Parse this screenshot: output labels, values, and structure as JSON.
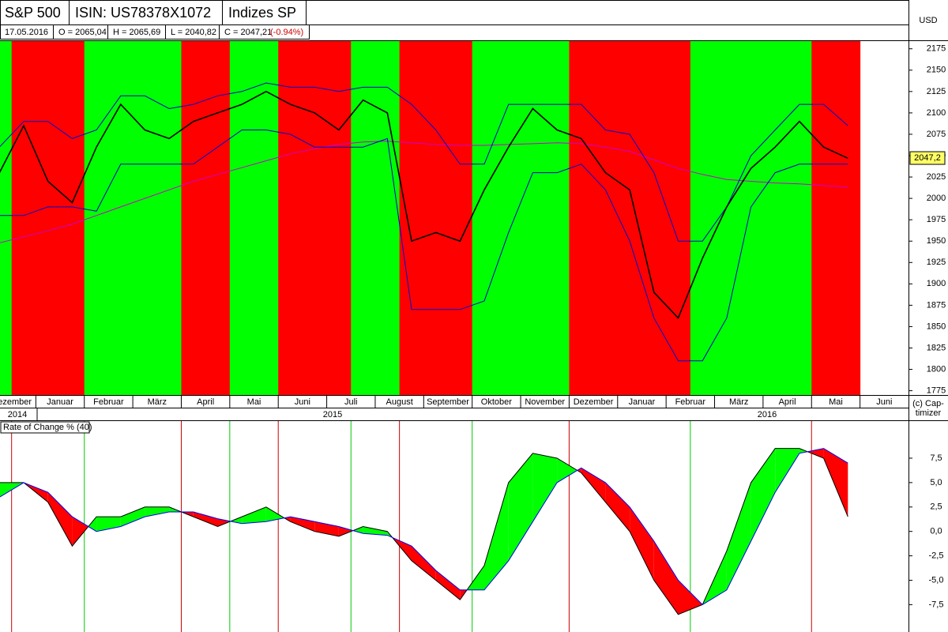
{
  "header": {
    "name": "S&P 500",
    "isin": "ISIN: US78378X1072",
    "exchange": "Indizes SP",
    "currency": "USD",
    "date": "17.05.2016",
    "open": "O = 2065,04",
    "high": "H = 2065,69",
    "low": "L = 2040,82",
    "close": "C = 2047,21",
    "change": "(-0.94%)"
  },
  "footer": {
    "copyright_1": "(c) Cap-",
    "copyright_2": "timizer"
  },
  "chart_data": [
    {
      "type": "line",
      "categories": [
        "Dezember",
        null,
        "Januar",
        null,
        "Februar",
        null,
        "März",
        null,
        "April",
        null,
        "Mai",
        null,
        "Juni",
        null,
        "Juli",
        null,
        "August",
        null,
        "September",
        null,
        "Oktober",
        null,
        "November",
        null,
        "Dezember",
        null,
        "Januar",
        null,
        "Februar",
        null,
        "März",
        null,
        "April",
        null,
        "Mai",
        null,
        "Juni",
        null
      ],
      "years": [
        "2014",
        "2015",
        "2016"
      ],
      "band_colors": [
        "#00ff00",
        "#ff0000",
        "#ff0000",
        "#ff0000",
        "#00ff00",
        "#00ff00",
        "#00ff00",
        "#00ff00",
        "#ff0000",
        "#ff0000",
        "#00ff00",
        "#00ff00",
        "#ff0000",
        "#ff0000",
        "#ff0000",
        "#00ff00",
        "#00ff00",
        "#ff0000",
        "#ff0000",
        "#ff0000",
        "#00ff00",
        "#00ff00",
        "#00ff00",
        "#00ff00",
        "#ff0000",
        "#ff0000",
        "#ff0000",
        "#ff0000",
        "#ff0000",
        "#00ff00",
        "#00ff00",
        "#00ff00",
        "#00ff00",
        "#00ff00",
        "#ff0000",
        "#ff0000",
        null,
        null
      ],
      "series": [
        {
          "color": "#cc00cc",
          "values": [
            1948,
            1955,
            1962,
            1970,
            1980,
            1990,
            2000,
            2010,
            2020,
            2028,
            2036,
            2044,
            2052,
            2058,
            2063,
            2066,
            2067,
            2065,
            2063,
            2062,
            2062,
            2063,
            2064,
            2065,
            2064,
            2060,
            2055,
            2045,
            2035,
            2028,
            2022,
            2020,
            2018,
            2017,
            2015,
            2013,
            null,
            null
          ]
        },
        {
          "color": "#0000cc",
          "values": [
            2060,
            2090,
            2090,
            2070,
            2080,
            2120,
            2120,
            2105,
            2110,
            2120,
            2125,
            2135,
            2130,
            2130,
            2125,
            2130,
            2130,
            2110,
            2080,
            2040,
            2040,
            2110,
            2110,
            2110,
            2110,
            2080,
            2075,
            2030,
            1950,
            1950,
            1990,
            2050,
            2080,
            2110,
            2110,
            2085,
            null,
            null
          ]
        },
        {
          "color": "#0000cc",
          "values": [
            1980,
            1980,
            1990,
            1990,
            1985,
            2040,
            2040,
            2040,
            2040,
            2060,
            2080,
            2080,
            2075,
            2060,
            2060,
            2060,
            2070,
            1870,
            1870,
            1870,
            1880,
            1960,
            2030,
            2030,
            2040,
            2010,
            1950,
            1860,
            1810,
            1810,
            1860,
            1990,
            2030,
            2040,
            2040,
            2040,
            null,
            null
          ]
        },
        {
          "color": "#000000",
          "values": [
            2030,
            2085,
            2020,
            1995,
            2060,
            2110,
            2080,
            2070,
            2090,
            2100,
            2110,
            2125,
            2110,
            2100,
            2080,
            2115,
            2100,
            1950,
            1960,
            1950,
            2010,
            2060,
            2105,
            2080,
            2070,
            2030,
            2010,
            1890,
            1860,
            1930,
            1990,
            2035,
            2060,
            2090,
            2060,
            2047,
            null,
            null
          ]
        }
      ],
      "last_price": {
        "value": 2047.2,
        "label": "2047,2"
      },
      "ylim": [
        1770,
        2184
      ],
      "yticks": [
        1775,
        1800,
        1825,
        1850,
        1875,
        1900,
        1925,
        1950,
        1975,
        2000,
        2025,
        2050,
        2075,
        2100,
        2125,
        2150,
        2175
      ]
    },
    {
      "type": "area",
      "title": "Rate of Change % (40)",
      "fill_up": "#00ff00",
      "fill_down": "#ff0000",
      "series": [
        {
          "color": "#000000",
          "values": [
            5,
            5,
            3,
            -1.5,
            1.5,
            1.5,
            2.5,
            2.5,
            1.5,
            0.5,
            1.5,
            2.5,
            1.0,
            0,
            -0.5,
            0.5,
            0,
            -3,
            -5,
            -7,
            -3.5,
            5,
            8,
            7.5,
            6,
            3,
            0,
            -5,
            -8.5,
            -7.5,
            -2,
            5,
            8.5,
            8.5,
            7.5,
            1.5,
            null,
            null
          ]
        },
        {
          "color": "#0000ff",
          "values": [
            3.5,
            5,
            4,
            1.5,
            0,
            0.5,
            1.5,
            2,
            2,
            1.3,
            0.8,
            1.0,
            1.5,
            1.0,
            0.5,
            -0.2,
            -0.4,
            -1.5,
            -4,
            -6,
            -6,
            -3,
            1,
            5,
            6.5,
            5,
            2.5,
            -1,
            -5,
            -7.5,
            -6,
            -1,
            4,
            8,
            8.5,
            7,
            null,
            null
          ]
        }
      ],
      "ylim": [
        -10.3,
        11.3
      ],
      "yticks": [
        {
          "value": 7.5,
          "label": "7,5"
        },
        {
          "value": 5,
          "label": "5,0"
        },
        {
          "value": 2.5,
          "label": "2,5"
        },
        {
          "value": 0,
          "label": "0,0"
        },
        {
          "value": -2.5,
          "label": "-2,5"
        },
        {
          "value": -5,
          "label": "-5,0"
        },
        {
          "value": -7.5,
          "label": "-7,5"
        }
      ]
    }
  ]
}
